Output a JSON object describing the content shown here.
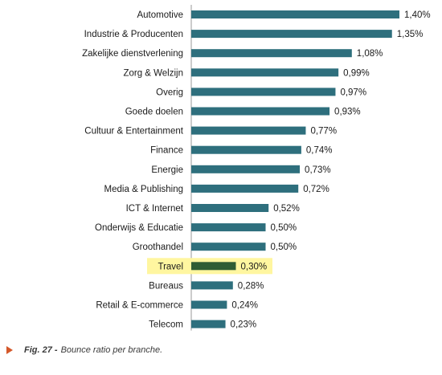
{
  "chart_data": {
    "type": "bar",
    "orientation": "horizontal",
    "categories": [
      "Automotive",
      "Industrie & Producenten",
      "Zakelijke dienstverlening",
      "Zorg & Welzijn",
      "Overig",
      "Goede doelen",
      "Cultuur & Entertainment",
      "Finance",
      "Energie",
      "Media & Publishing",
      "ICT & Internet",
      "Onderwijs & Educatie",
      "Groothandel",
      "Travel",
      "Bureaus",
      "Retail & E-commerce",
      "Telecom"
    ],
    "values": [
      1.4,
      1.35,
      1.08,
      0.99,
      0.97,
      0.93,
      0.77,
      0.74,
      0.73,
      0.72,
      0.52,
      0.5,
      0.5,
      0.3,
      0.28,
      0.24,
      0.23
    ],
    "value_labels": [
      "1,40%",
      "1,35%",
      "1,08%",
      "0,99%",
      "0,97%",
      "0,93%",
      "0,77%",
      "0,74%",
      "0,73%",
      "0,72%",
      "0,52%",
      "0,50%",
      "0,50%",
      "0,30%",
      "0,28%",
      "0,24%",
      "0,23%"
    ],
    "highlighted_category": "Travel",
    "xlim": [
      0,
      1.4
    ],
    "grid": false,
    "colors": {
      "bar": "#2e6f7d",
      "highlight_bar": "#2f5d34",
      "highlight_background": "#fff6a0"
    }
  },
  "caption": {
    "fig_label": "Fig. 27 -",
    "text": "Bounce ratio per branche.",
    "marker_icon": "triangle-right-icon",
    "marker_color": "#d4582a"
  }
}
